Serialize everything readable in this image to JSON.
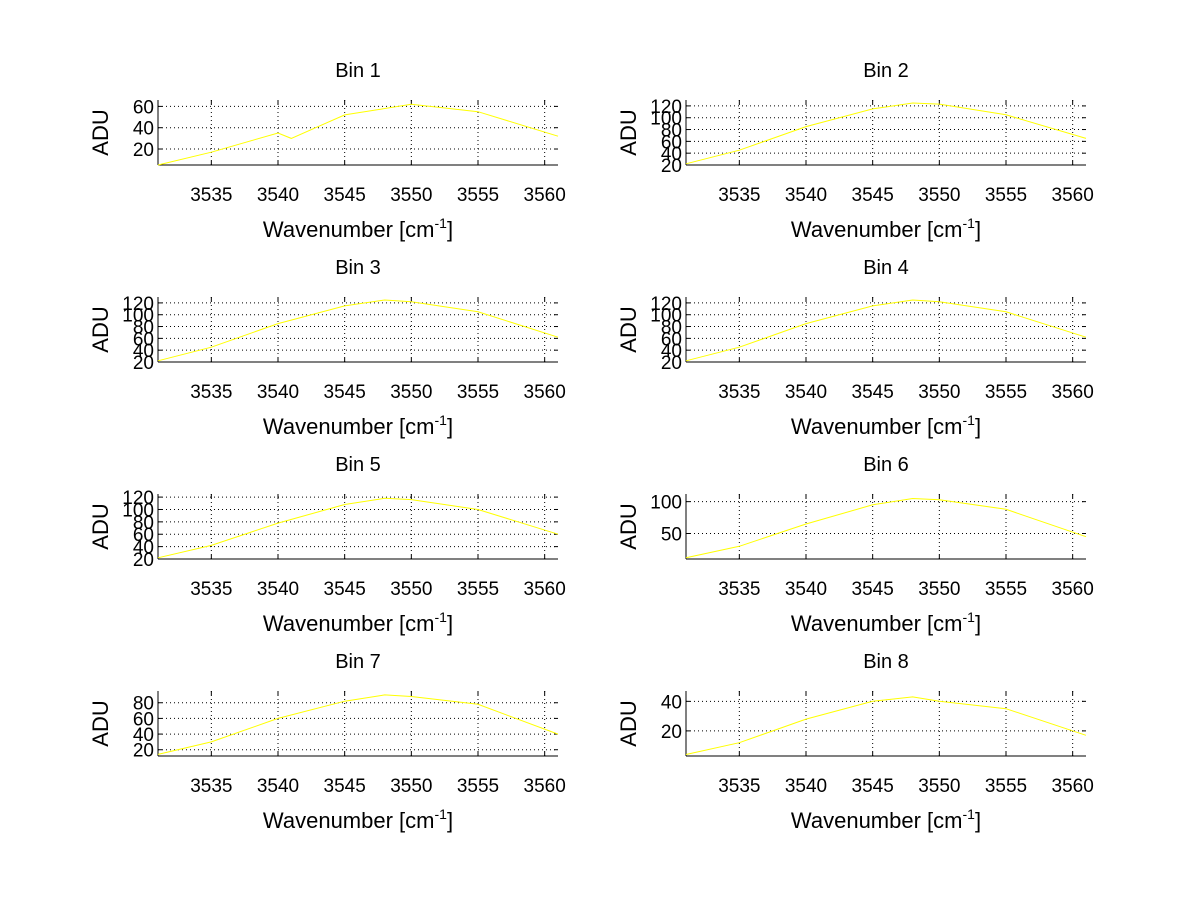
{
  "figure": {
    "background": "#ffffff",
    "line_color": "#ffff00",
    "grid_color": "#000000"
  },
  "chart_data": [
    {
      "type": "line",
      "title": "Bin 1",
      "xlabel": "Wavenumber [cm",
      "xlabel_sup": "-1",
      "xlabel_end": "]",
      "ylabel": "ADU",
      "xlim": [
        3531,
        3561
      ],
      "ylim": [
        5,
        66
      ],
      "xticks": [
        3535,
        3540,
        3545,
        3550,
        3555,
        3560
      ],
      "yticks": [
        20,
        40,
        60
      ],
      "series": [
        {
          "x": [
            3531,
            3535,
            3540,
            3541,
            3545,
            3550,
            3555,
            3561
          ],
          "y": [
            5,
            17,
            35,
            30,
            52,
            62,
            55,
            32
          ]
        }
      ]
    },
    {
      "type": "line",
      "title": "Bin 2",
      "xlabel": "Wavenumber [cm",
      "xlabel_sup": "-1",
      "xlabel_end": "]",
      "ylabel": "ADU",
      "xlim": [
        3531,
        3561
      ],
      "ylim": [
        20,
        130
      ],
      "xticks": [
        3535,
        3540,
        3545,
        3550,
        3555,
        3560
      ],
      "yticks": [
        20,
        40,
        60,
        80,
        100,
        120
      ],
      "series": [
        {
          "x": [
            3531,
            3535,
            3540,
            3545,
            3548,
            3550,
            3555,
            3561
          ],
          "y": [
            22,
            45,
            85,
            115,
            125,
            123,
            105,
            65
          ]
        }
      ]
    },
    {
      "type": "line",
      "title": "Bin 3",
      "xlabel": "Wavenumber [cm",
      "xlabel_sup": "-1",
      "xlabel_end": "]",
      "ylabel": "ADU",
      "xlim": [
        3531,
        3561
      ],
      "ylim": [
        20,
        130
      ],
      "xticks": [
        3535,
        3540,
        3545,
        3550,
        3555,
        3560
      ],
      "yticks": [
        20,
        40,
        60,
        80,
        100,
        120
      ],
      "series": [
        {
          "x": [
            3531,
            3535,
            3540,
            3545,
            3548,
            3550,
            3555,
            3561
          ],
          "y": [
            22,
            45,
            85,
            115,
            125,
            122,
            105,
            62
          ]
        }
      ]
    },
    {
      "type": "line",
      "title": "Bin 4",
      "xlabel": "Wavenumber [cm",
      "xlabel_sup": "-1",
      "xlabel_end": "]",
      "ylabel": "ADU",
      "xlim": [
        3531,
        3561
      ],
      "ylim": [
        20,
        130
      ],
      "xticks": [
        3535,
        3540,
        3545,
        3550,
        3555,
        3560
      ],
      "yticks": [
        20,
        40,
        60,
        80,
        100,
        120
      ],
      "series": [
        {
          "x": [
            3531,
            3535,
            3540,
            3545,
            3548,
            3550,
            3555,
            3561
          ],
          "y": [
            22,
            45,
            85,
            115,
            125,
            122,
            105,
            62
          ]
        }
      ]
    },
    {
      "type": "line",
      "title": "Bin 5",
      "xlabel": "Wavenumber [cm",
      "xlabel_sup": "-1",
      "xlabel_end": "]",
      "ylabel": "ADU",
      "xlim": [
        3531,
        3561
      ],
      "ylim": [
        20,
        125
      ],
      "xticks": [
        3535,
        3540,
        3545,
        3550,
        3555,
        3560
      ],
      "yticks": [
        20,
        40,
        60,
        80,
        100,
        120
      ],
      "series": [
        {
          "x": [
            3531,
            3535,
            3540,
            3545,
            3548,
            3550,
            3555,
            3561
          ],
          "y": [
            22,
            42,
            78,
            108,
            118,
            116,
            100,
            60
          ]
        }
      ]
    },
    {
      "type": "line",
      "title": "Bin 6",
      "xlabel": "Wavenumber [cm",
      "xlabel_sup": "-1",
      "xlabel_end": "]",
      "ylabel": "ADU",
      "xlim": [
        3531,
        3561
      ],
      "ylim": [
        10,
        112
      ],
      "xticks": [
        3535,
        3540,
        3545,
        3550,
        3555,
        3560
      ],
      "yticks": [
        50,
        100
      ],
      "series": [
        {
          "x": [
            3531,
            3535,
            3540,
            3545,
            3548,
            3550,
            3555,
            3561
          ],
          "y": [
            12,
            30,
            65,
            95,
            105,
            103,
            88,
            45
          ]
        }
      ]
    },
    {
      "type": "line",
      "title": "Bin 7",
      "xlabel": "Wavenumber [cm",
      "xlabel_sup": "-1",
      "xlabel_end": "]",
      "ylabel": "ADU",
      "xlim": [
        3531,
        3561
      ],
      "ylim": [
        12,
        95
      ],
      "xticks": [
        3535,
        3540,
        3545,
        3550,
        3555,
        3560
      ],
      "yticks": [
        20,
        40,
        60,
        80
      ],
      "series": [
        {
          "x": [
            3531,
            3535,
            3540,
            3545,
            3548,
            3550,
            3555,
            3561
          ],
          "y": [
            14,
            30,
            60,
            82,
            90,
            88,
            78,
            40
          ]
        }
      ]
    },
    {
      "type": "line",
      "title": "Bin 8",
      "xlabel": "Wavenumber [cm",
      "xlabel_sup": "-1",
      "xlabel_end": "]",
      "ylabel": "ADU",
      "xlim": [
        3531,
        3561
      ],
      "ylim": [
        3,
        47
      ],
      "xticks": [
        3535,
        3540,
        3545,
        3550,
        3555,
        3560
      ],
      "yticks": [
        20,
        40
      ],
      "series": [
        {
          "x": [
            3531,
            3535,
            3540,
            3545,
            3548,
            3550,
            3555,
            3561
          ],
          "y": [
            4,
            12,
            28,
            40,
            43,
            40,
            35,
            17
          ]
        }
      ]
    }
  ]
}
